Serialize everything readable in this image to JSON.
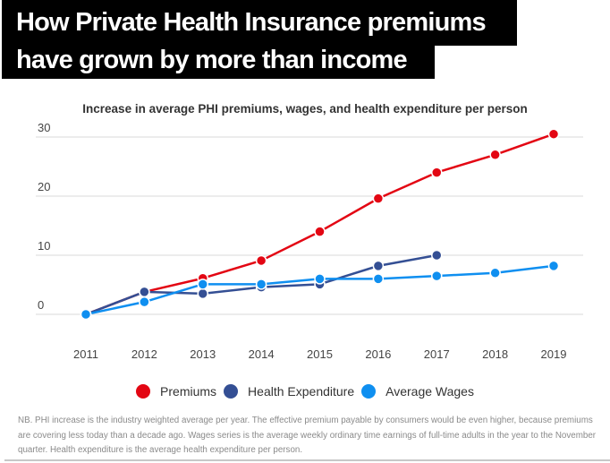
{
  "header": {
    "title_line1": "How Private Health Insurance premiums",
    "title_line2": "have grown by more than income"
  },
  "note": "NB. PHI increase is the industry weighted average per year. The effective premium payable by consumers would be even higher, because premiums are covering less today than a decade ago. Wages series is the average weekly ordinary time earnings of full-time adults in the year to the November quarter. Health expenditure is the average health expenditure per person.",
  "chart_data": {
    "type": "line",
    "title": "Increase in average PHI premiums, wages, and health expenditure per person",
    "xlabel": "",
    "ylabel": "",
    "x": [
      "2011",
      "2012",
      "2013",
      "2014",
      "2015",
      "2016",
      "2017",
      "2018",
      "2019"
    ],
    "yticks": [
      0,
      10,
      20,
      30
    ],
    "ylim": [
      0,
      30
    ],
    "grid": true,
    "legend_position": "bottom",
    "series": [
      {
        "name": "Premiums",
        "color": "#e30613",
        "values": [
          0,
          3.8,
          6.1,
          9.1,
          14.0,
          19.6,
          24.0,
          27.0,
          30.5
        ]
      },
      {
        "name": "Health Expenditure",
        "color": "#344f94",
        "values": [
          0,
          3.8,
          3.5,
          4.6,
          5.1,
          8.2,
          10.0,
          null,
          null
        ]
      },
      {
        "name": "Average Wages",
        "color": "#0f8ff0",
        "values": [
          0,
          2.1,
          5.1,
          5.1,
          6.0,
          6.0,
          6.5,
          7.0,
          8.2
        ]
      }
    ]
  }
}
